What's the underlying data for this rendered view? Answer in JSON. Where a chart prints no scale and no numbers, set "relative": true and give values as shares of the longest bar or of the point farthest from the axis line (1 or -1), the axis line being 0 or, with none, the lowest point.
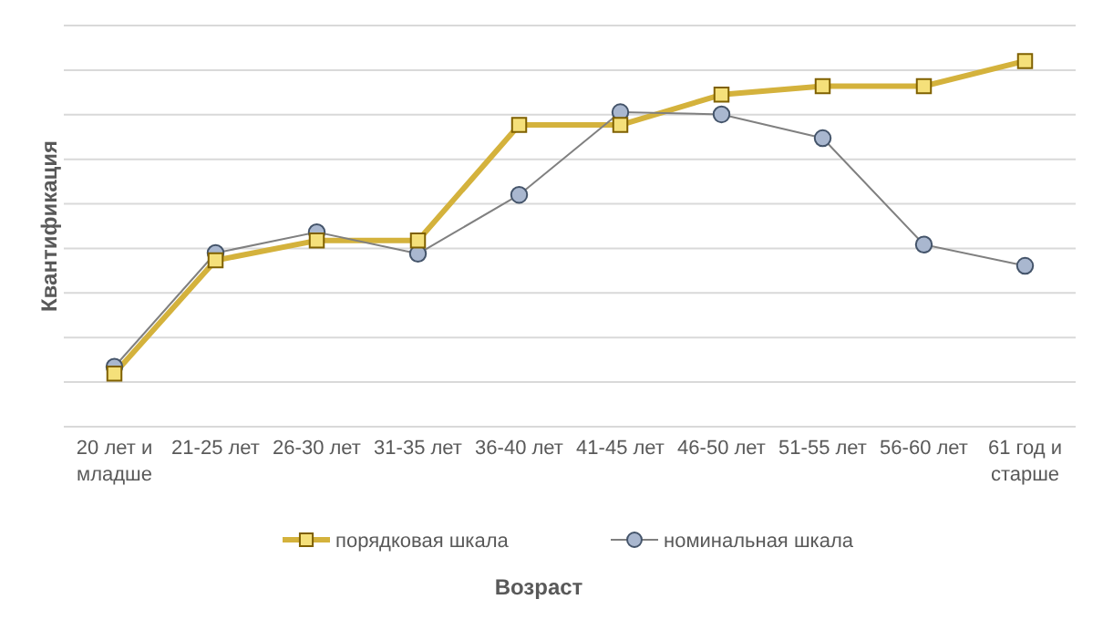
{
  "chart_data": {
    "type": "line",
    "relative": true,
    "xlabel": "Возраст",
    "ylabel": "Квантификация",
    "grid": "y",
    "legend": "bottom",
    "categories": [
      "20 лет и младше",
      "21-25 лет",
      "26-30 лет",
      "31-35 лет",
      "36-40 лет",
      "41-45 лет",
      "46-50 лет",
      "51-55 лет",
      "56-60 лет",
      "61 год и старше"
    ],
    "series": [
      {
        "name": "порядковая шкала",
        "color": "#d4b23c",
        "marker": "square",
        "values": [
          0.145,
          0.455,
          0.509,
          0.509,
          0.825,
          0.825,
          0.908,
          0.931,
          0.931,
          1
        ]
      },
      {
        "name": "номинальная шкала",
        "color": "#808080",
        "marker": "circle",
        "values": [
          0.164,
          0.475,
          0.532,
          0.473,
          0.634,
          0.86,
          0.854,
          0.789,
          0.498,
          0.44
        ]
      }
    ]
  }
}
